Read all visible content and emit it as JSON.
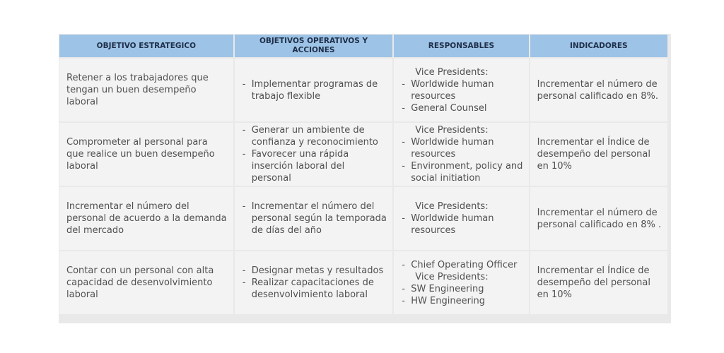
{
  "table": {
    "headers": [
      "OBJETIVO ESTRATEGICO",
      "OBJETIVOS OPERATIVOS Y ACCIONES",
      "RESPONSABLES",
      "INDICADORES"
    ],
    "rows": [
      {
        "objetivo": "Retener a los trabajadores que tengan un buen desempeño laboral",
        "acciones": [
          "Implementar programas de trabajo flexible"
        ],
        "responsables": [
          {
            "type": "head",
            "text": "Vice Presidents:"
          },
          {
            "type": "bullet",
            "text": "Worldwide human resources"
          },
          {
            "type": "bullet",
            "text": "General Counsel"
          }
        ],
        "indicador": "Incrementar el número de personal calificado en 8%."
      },
      {
        "objetivo": "Comprometer al personal para que realice un buen desempeño laboral",
        "acciones": [
          "Generar un ambiente de confianza y reconocimiento",
          "Favorecer una rápida inserción laboral del personal"
        ],
        "responsables": [
          {
            "type": "head",
            "text": "Vice Presidents:"
          },
          {
            "type": "bullet",
            "text": "Worldwide human resources"
          },
          {
            "type": "bullet",
            "text": "Environment, policy and social initiation"
          }
        ],
        "indicador": "Incrementar el Índice de desempeño del personal en 10%"
      },
      {
        "objetivo": "Incrementar el número del personal de acuerdo a la demanda del mercado",
        "acciones": [
          "Incrementar el número del personal según la temporada de días del año"
        ],
        "responsables": [
          {
            "type": "head",
            "text": "Vice Presidents:"
          },
          {
            "type": "bullet",
            "text": "Worldwide human resources"
          }
        ],
        "indicador": "Incrementar el número de personal calificado en 8% ."
      },
      {
        "objetivo": "Contar con un personal con alta capacidad de desenvolvimiento laboral",
        "acciones": [
          "Designar metas y resultados",
          "Realizar capacitaciones de desenvolvimiento laboral"
        ],
        "responsables": [
          {
            "type": "bullet",
            "text": "Chief Operating Officer"
          },
          {
            "type": "head",
            "text": "Vice Presidents:"
          },
          {
            "type": "bullet",
            "text": "SW Engineering"
          },
          {
            "type": "bullet",
            "text": "HW Engineering"
          }
        ],
        "indicador": "Incrementar el Índice de desempeño del personal en 10%"
      }
    ]
  }
}
